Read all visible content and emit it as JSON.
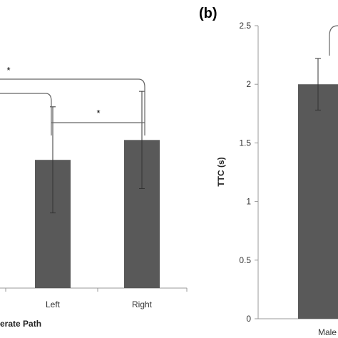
{
  "colors": {
    "bar": "#595959",
    "axis": "#999999",
    "text": "#333333",
    "bracket": "#666666"
  },
  "chart_data": [
    {
      "type": "bar",
      "panel_label": "",
      "categories": [
        "Left",
        "Right"
      ],
      "values": [
        0.58,
        0.67
      ],
      "error": [
        0.24,
        0.22
      ],
      "xlabel": "erate Path",
      "ylabel": "",
      "ylim": [
        0,
        1.5
      ],
      "annotations": [
        "*",
        "*"
      ]
    },
    {
      "type": "bar",
      "panel_label": "(b)",
      "categories": [
        "Male"
      ],
      "values": [
        2.0
      ],
      "error": [
        0.22
      ],
      "xlabel": "",
      "ylabel": "TTC (s)",
      "ylim": [
        0,
        2.5
      ],
      "yticks": [
        "0",
        "0.5",
        "1",
        "1.5",
        "2",
        "2.5"
      ]
    }
  ]
}
